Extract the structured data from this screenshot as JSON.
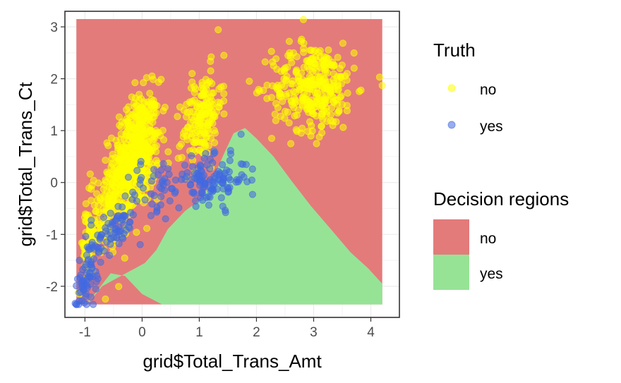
{
  "chart_data": {
    "type": "scatter",
    "xlabel": "grid$Total_Trans_Amt",
    "ylabel": "grid$Total_Trans_Ct",
    "xlim": [
      -1.35,
      4.5
    ],
    "ylim": [
      -2.6,
      3.3
    ],
    "x_ticks": [
      -1,
      0,
      1,
      2,
      3,
      4
    ],
    "y_ticks": [
      -2,
      -1,
      0,
      1,
      2,
      3
    ],
    "x_tick_labels": [
      "-1",
      "0",
      "1",
      "2",
      "3",
      "4"
    ],
    "y_tick_labels": [
      "-2",
      "-1",
      "0",
      "1",
      "2",
      "3"
    ],
    "grid": true,
    "regions": {
      "title": "Decision regions",
      "extent": {
        "x": [
          -1.15,
          4.2
        ],
        "y": [
          -2.35,
          3.15
        ]
      },
      "items": [
        {
          "label": "no",
          "color": "#e37b7b"
        },
        {
          "label": "yes",
          "color": "#96e396"
        }
      ],
      "yes_region_boundary": [
        [
          -1.05,
          -2.35
        ],
        [
          -0.92,
          -2.3
        ],
        [
          -0.7,
          -2.0
        ],
        [
          -0.45,
          -1.85
        ],
        [
          -0.2,
          -1.7
        ],
        [
          0.05,
          -1.55
        ],
        [
          0.25,
          -1.3
        ],
        [
          0.45,
          -0.9
        ],
        [
          0.75,
          -0.55
        ],
        [
          1.05,
          -0.3
        ],
        [
          1.25,
          0.1
        ],
        [
          1.45,
          0.6
        ],
        [
          1.6,
          0.95
        ],
        [
          1.8,
          1.05
        ],
        [
          2.0,
          0.85
        ],
        [
          2.3,
          0.5
        ],
        [
          2.6,
          0.05
        ],
        [
          2.95,
          -0.45
        ],
        [
          3.3,
          -0.9
        ],
        [
          3.65,
          -1.35
        ],
        [
          3.95,
          -1.65
        ],
        [
          4.2,
          -1.95
        ],
        [
          4.2,
          -2.35
        ],
        [
          0.35,
          -2.35
        ],
        [
          0.0,
          -2.15
        ],
        [
          -0.3,
          -1.8
        ],
        [
          -0.55,
          -1.75
        ],
        [
          -0.9,
          -2.25
        ]
      ]
    },
    "series": [
      {
        "name": "no",
        "color": "#ffff00",
        "clusters": [
          {
            "center": [
              -0.1,
              0.55
            ],
            "spread": [
              0.2,
              0.55
            ],
            "n": 520,
            "tilt": 0.8
          },
          {
            "center": [
              -0.55,
              -0.4
            ],
            "spread": [
              0.18,
              0.45
            ],
            "n": 180,
            "tilt": 1.2
          },
          {
            "center": [
              -0.95,
              -1.2
            ],
            "spread": [
              0.08,
              0.35
            ],
            "n": 60,
            "tilt": 1.5
          },
          {
            "center": [
              1.05,
              1.25
            ],
            "spread": [
              0.17,
              0.42
            ],
            "n": 180,
            "tilt": 0.9
          },
          {
            "center": [
              3.0,
              1.85
            ],
            "spread": [
              0.36,
              0.42
            ],
            "n": 320,
            "tilt": 0.0
          }
        ],
        "points": [
          [
            2.82,
            3.14
          ],
          [
            4.2,
            1.87
          ],
          [
            1.43,
            2.45
          ],
          [
            0.4,
            1.45
          ],
          [
            3.55,
            2.05
          ],
          [
            2.3,
            2.25
          ],
          [
            2.6,
            0.75
          ],
          [
            3.05,
            0.75
          ],
          [
            0.1,
            1.55
          ]
        ]
      },
      {
        "name": "yes",
        "color": "#4169e1",
        "clusters": [
          {
            "center": [
              1.2,
              0.05
            ],
            "spread": [
              0.32,
              0.22
            ],
            "n": 120,
            "tilt": 0.0
          },
          {
            "center": [
              0.25,
              -0.05
            ],
            "spread": [
              0.22,
              0.25
            ],
            "n": 35,
            "tilt": 0.0
          },
          {
            "center": [
              -0.45,
              -0.85
            ],
            "spread": [
              0.2,
              0.25
            ],
            "n": 70,
            "tilt": 0.9
          },
          {
            "center": [
              -0.95,
              -1.75
            ],
            "spread": [
              0.1,
              0.35
            ],
            "n": 70,
            "tilt": 1.6
          }
        ],
        "points": [
          [
            1.73,
            0.93
          ],
          [
            1.76,
            0.35
          ],
          [
            1.46,
            -0.58
          ],
          [
            1.55,
            0.55
          ],
          [
            1.93,
            0.26
          ],
          [
            0.41,
            -0.7
          ],
          [
            -1.17,
            -2.33
          ],
          [
            -1.1,
            -2.28
          ]
        ]
      }
    ],
    "legend": {
      "title": "Truth",
      "placement": "right",
      "items": [
        {
          "label": "no",
          "color": "#ffff00"
        },
        {
          "label": "yes",
          "color": "#4169e1"
        }
      ]
    }
  }
}
